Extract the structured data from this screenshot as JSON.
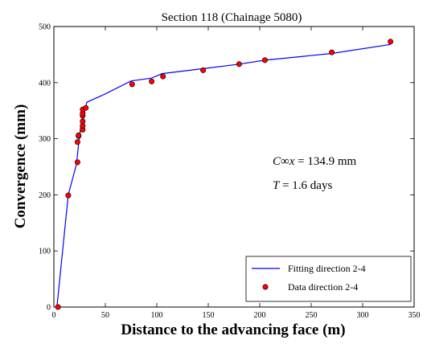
{
  "chart_data": {
    "type": "scatter",
    "title": "Section 118 (Chainage 5080)",
    "xlabel": "Distance to the advancing face (m)",
    "ylabel": "Convergence (mm)",
    "xlim": [
      0,
      350
    ],
    "ylim": [
      0,
      500
    ],
    "xticks": [
      0,
      50,
      100,
      150,
      200,
      250,
      300,
      350
    ],
    "yticks": [
      0,
      100,
      200,
      300,
      400,
      500
    ],
    "grid": false,
    "legend_position": "bottom-right",
    "series": [
      {
        "name": "Fitting direction 2-4",
        "kind": "line",
        "color": "#0000ff",
        "x": [
          3,
          14,
          22,
          24,
          26,
          28,
          30,
          32,
          50,
          75,
          95,
          105,
          145,
          180,
          205,
          270,
          327
        ],
        "y": [
          0,
          200,
          255,
          290,
          320,
          330,
          350,
          365,
          380,
          403,
          408,
          416,
          425,
          433,
          440,
          452,
          468
        ]
      },
      {
        "name": "Data direction 2-4",
        "kind": "scatter",
        "color": "#ff0000",
        "x": [
          4,
          14,
          23,
          23,
          24,
          24,
          28,
          28,
          28,
          28,
          28,
          28,
          31,
          76,
          95,
          106,
          145,
          180,
          205,
          270,
          327
        ],
        "y": [
          0,
          199,
          258,
          294,
          305,
          306,
          316,
          323,
          331,
          341,
          345,
          352,
          355,
          397,
          402,
          411,
          422,
          433,
          440,
          454,
          473
        ]
      }
    ],
    "annotations": [
      {
        "C": "C",
        "inf": "∞",
        "x": "x",
        "rest": " = 134.9 mm"
      },
      {
        "T": "T",
        "rest": " = 1.6 days"
      }
    ]
  }
}
